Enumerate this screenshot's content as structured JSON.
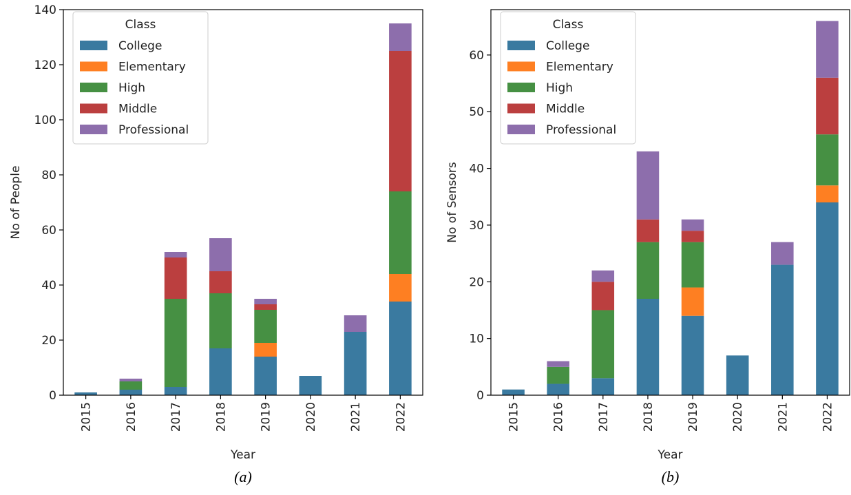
{
  "colors": {
    "College": "#3a7aa0",
    "Elementary": "#fe7f22",
    "High": "#469043",
    "Middle": "#bb3f3f",
    "Professional": "#8d6eac"
  },
  "chart_data": [
    {
      "type": "bar",
      "stacked": true,
      "caption": "(a)",
      "xlabel": "Year",
      "ylabel": "No of People",
      "ylim": [
        0,
        140
      ],
      "yticks": [
        "0",
        "20",
        "40",
        "60",
        "80",
        "100",
        "120",
        "140"
      ],
      "categories": [
        "2015",
        "2016",
        "2017",
        "2018",
        "2019",
        "2020",
        "2021",
        "2022"
      ],
      "legend_title": "Class",
      "legend_position": "upper-left",
      "series": [
        {
          "name": "College",
          "values": [
            1,
            2,
            3,
            17,
            14,
            7,
            23,
            34
          ]
        },
        {
          "name": "Elementary",
          "values": [
            0,
            0,
            0,
            0,
            5,
            0,
            0,
            10
          ]
        },
        {
          "name": "High",
          "values": [
            0,
            3,
            32,
            20,
            12,
            0,
            0,
            30
          ]
        },
        {
          "name": "Middle",
          "values": [
            0,
            0,
            15,
            8,
            2,
            0,
            0,
            51
          ]
        },
        {
          "name": "Professional",
          "values": [
            0,
            1,
            2,
            12,
            2,
            0,
            6,
            10
          ]
        }
      ]
    },
    {
      "type": "bar",
      "stacked": true,
      "caption": "(b)",
      "xlabel": "Year",
      "ylabel": "No of Sensors",
      "ylim": [
        0,
        68
      ],
      "yticks": [
        "0",
        "10",
        "20",
        "30",
        "40",
        "50",
        "60"
      ],
      "categories": [
        "2015",
        "2016",
        "2017",
        "2018",
        "2019",
        "2020",
        "2021",
        "2022"
      ],
      "legend_title": "Class",
      "legend_position": "upper-left",
      "series": [
        {
          "name": "College",
          "values": [
            1,
            2,
            3,
            17,
            14,
            7,
            23,
            34
          ]
        },
        {
          "name": "Elementary",
          "values": [
            0,
            0,
            0,
            0,
            5,
            0,
            0,
            3
          ]
        },
        {
          "name": "High",
          "values": [
            0,
            3,
            12,
            10,
            8,
            0,
            0,
            9
          ]
        },
        {
          "name": "Middle",
          "values": [
            0,
            0,
            5,
            4,
            2,
            0,
            0,
            10
          ]
        },
        {
          "name": "Professional",
          "values": [
            0,
            1,
            2,
            12,
            2,
            0,
            4,
            10
          ]
        }
      ]
    }
  ]
}
